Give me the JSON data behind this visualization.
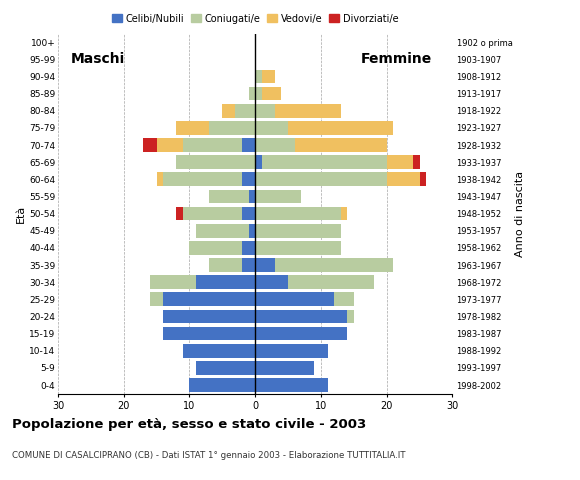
{
  "age_groups": [
    "0-4",
    "5-9",
    "10-14",
    "15-19",
    "20-24",
    "25-29",
    "30-34",
    "35-39",
    "40-44",
    "45-49",
    "50-54",
    "55-59",
    "60-64",
    "65-69",
    "70-74",
    "75-79",
    "80-84",
    "85-89",
    "90-94",
    "95-99",
    "100+"
  ],
  "birth_years": [
    "1998-2002",
    "1993-1997",
    "1988-1992",
    "1983-1987",
    "1978-1982",
    "1973-1977",
    "1968-1972",
    "1963-1967",
    "1958-1962",
    "1953-1957",
    "1948-1952",
    "1943-1947",
    "1938-1942",
    "1933-1937",
    "1928-1932",
    "1923-1927",
    "1918-1922",
    "1913-1917",
    "1908-1912",
    "1903-1907",
    "1902 o prima"
  ],
  "males": {
    "celibi": [
      10,
      9,
      11,
      14,
      14,
      14,
      9,
      2,
      2,
      1,
      2,
      1,
      2,
      0,
      2,
      0,
      0,
      0,
      0,
      0,
      0
    ],
    "coniugati": [
      0,
      0,
      0,
      0,
      0,
      2,
      7,
      5,
      8,
      8,
      9,
      6,
      12,
      12,
      9,
      7,
      3,
      1,
      0,
      0,
      0
    ],
    "vedovi": [
      0,
      0,
      0,
      0,
      0,
      0,
      0,
      0,
      0,
      0,
      0,
      0,
      1,
      0,
      4,
      5,
      2,
      0,
      0,
      0,
      0
    ],
    "divorziati": [
      0,
      0,
      0,
      0,
      0,
      0,
      0,
      0,
      0,
      0,
      1,
      0,
      0,
      0,
      2,
      0,
      0,
      0,
      0,
      0,
      0
    ]
  },
  "females": {
    "nubili": [
      11,
      9,
      11,
      14,
      14,
      12,
      5,
      3,
      0,
      0,
      0,
      0,
      0,
      1,
      0,
      0,
      0,
      0,
      0,
      0,
      0
    ],
    "coniugate": [
      0,
      0,
      0,
      0,
      1,
      3,
      13,
      18,
      13,
      13,
      13,
      7,
      20,
      19,
      6,
      5,
      3,
      1,
      1,
      0,
      0
    ],
    "vedove": [
      0,
      0,
      0,
      0,
      0,
      0,
      0,
      0,
      0,
      0,
      1,
      0,
      5,
      4,
      14,
      16,
      10,
      3,
      2,
      0,
      0
    ],
    "divorziate": [
      0,
      0,
      0,
      0,
      0,
      0,
      0,
      0,
      0,
      0,
      0,
      0,
      1,
      1,
      0,
      0,
      0,
      0,
      0,
      0,
      0
    ]
  },
  "colors": {
    "celibi_nubili": "#4472c4",
    "coniugati": "#b8cca0",
    "vedovi": "#f0c060",
    "divorziati": "#cc2222"
  },
  "xlim": 30,
  "title": "Popolazione per età, sesso e stato civile - 2003",
  "subtitle": "COMUNE DI CASALCIPRANO (CB) - Dati ISTAT 1° gennaio 2003 - Elaborazione TUTTITALIA.IT",
  "legend_labels": [
    "Celibi/Nubili",
    "Coniugati/e",
    "Vedovi/e",
    "Divorziati/e"
  ]
}
